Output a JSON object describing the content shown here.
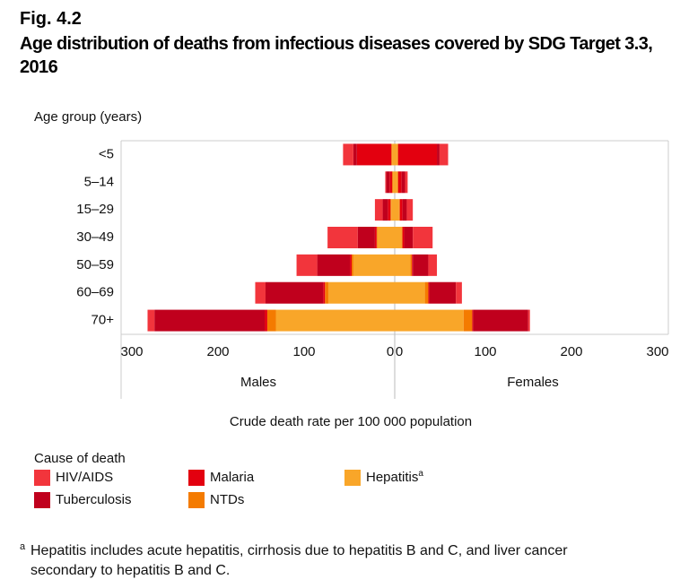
{
  "figure_label": "Fig. 4.2",
  "chart_data": {
    "type": "pyramid",
    "title": "Age distribution of deaths from infectious diseases covered by SDG Target 3.3, 2016",
    "y_axis_title": "Age group (years)",
    "x_axis_title": "Crude death rate per 100 000 population",
    "left_label": "Males",
    "right_label": "Females",
    "categories": [
      "<5",
      "5–14",
      "15–29",
      "30–49",
      "50–59",
      "60–69",
      "70+"
    ],
    "xlim": [
      0,
      300
    ],
    "xticks": [
      0,
      100,
      200,
      300
    ],
    "legend_title": "Cause of death",
    "series": [
      {
        "name": "HIV/AIDS",
        "color": "#f2353c",
        "males": [
          12,
          1,
          9,
          35,
          24,
          12,
          8
        ],
        "females": [
          10,
          3,
          7,
          23,
          10,
          7,
          2
        ]
      },
      {
        "name": "Tuberculosis",
        "color": "#c0001d",
        "males": [
          4,
          4,
          6,
          20,
          38,
          67,
          128
        ],
        "females": [
          3,
          4,
          5,
          10,
          18,
          31,
          64
        ]
      },
      {
        "name": "Malaria",
        "color": "#e3000f",
        "males": [
          40,
          3,
          3,
          2,
          2,
          2,
          3
        ],
        "females": [
          45,
          4,
          3,
          2,
          1,
          1,
          1
        ]
      },
      {
        "name": "NTDs",
        "color": "#f47b00",
        "males": [
          1,
          1,
          1,
          1,
          2,
          4,
          10
        ],
        "females": [
          1,
          1,
          1,
          1,
          2,
          4,
          10
        ]
      },
      {
        "name": "Hepatitis",
        "color": "#f9a629",
        "footnote_marker": "a",
        "males": [
          3,
          2,
          4,
          20,
          48,
          77,
          138
        ],
        "females": [
          3,
          3,
          5,
          8,
          18,
          35,
          80
        ]
      }
    ]
  },
  "footnote": {
    "marker": "a",
    "text": "Hepatitis includes acute hepatitis, cirrhosis due to hepatitis B and C, and liver cancer secondary to hepatitis B and C."
  }
}
